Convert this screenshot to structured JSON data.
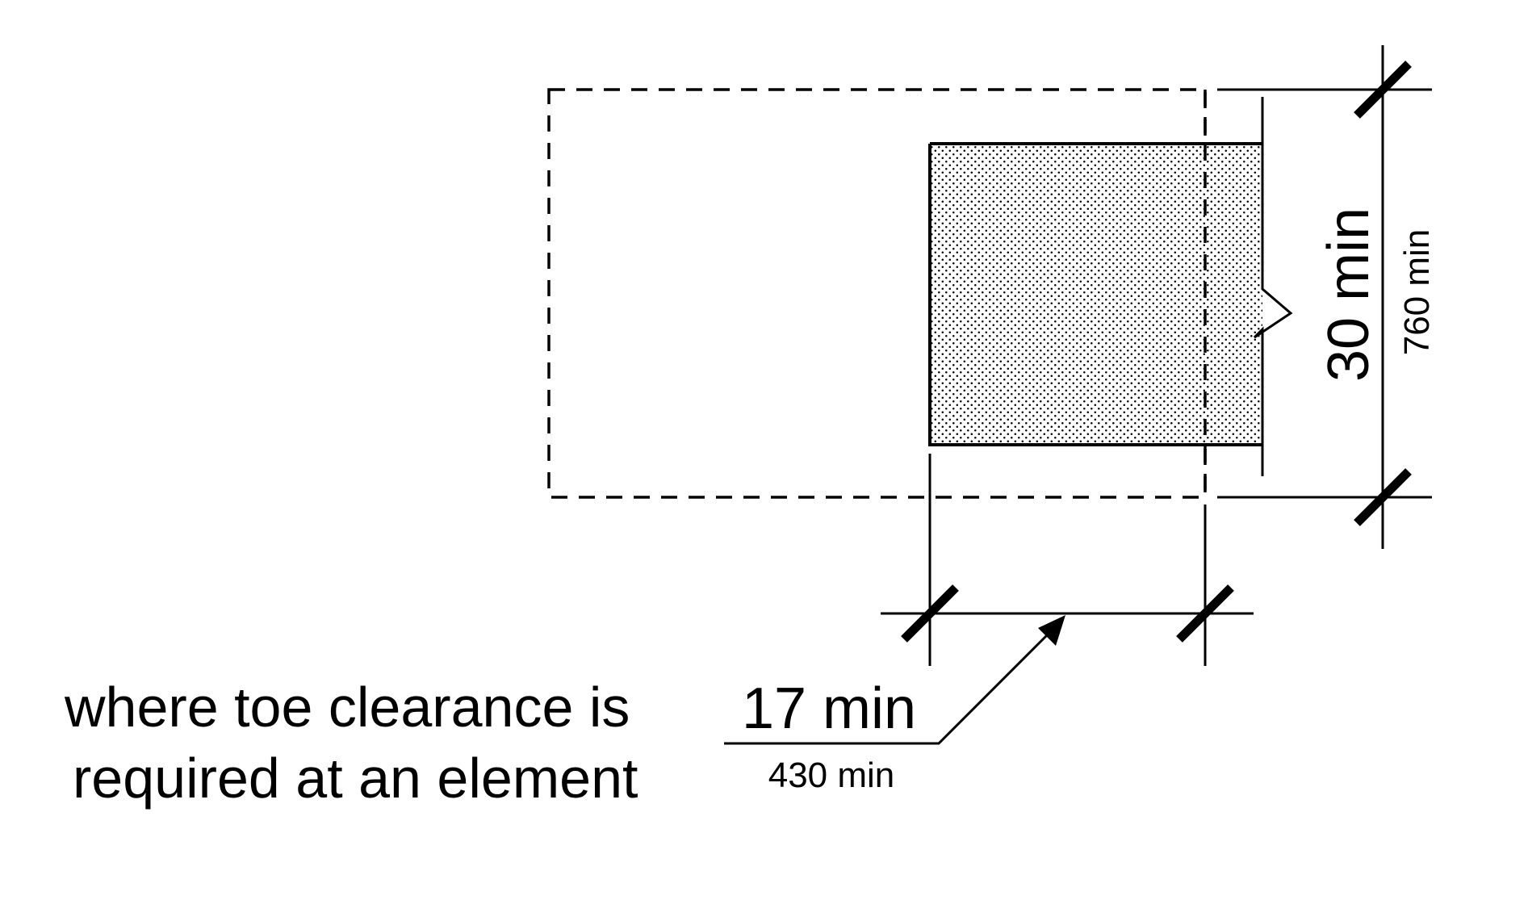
{
  "caption": {
    "line1": "where toe clearance is",
    "line2": "required at an element"
  },
  "dimensions": {
    "width": {
      "imperial": "17 min",
      "metric": "430 min"
    },
    "depth": {
      "imperial": "30 min",
      "metric": "760 min"
    }
  },
  "colors": {
    "line": "#000000",
    "background": "#ffffff",
    "stipple": "#000000"
  }
}
